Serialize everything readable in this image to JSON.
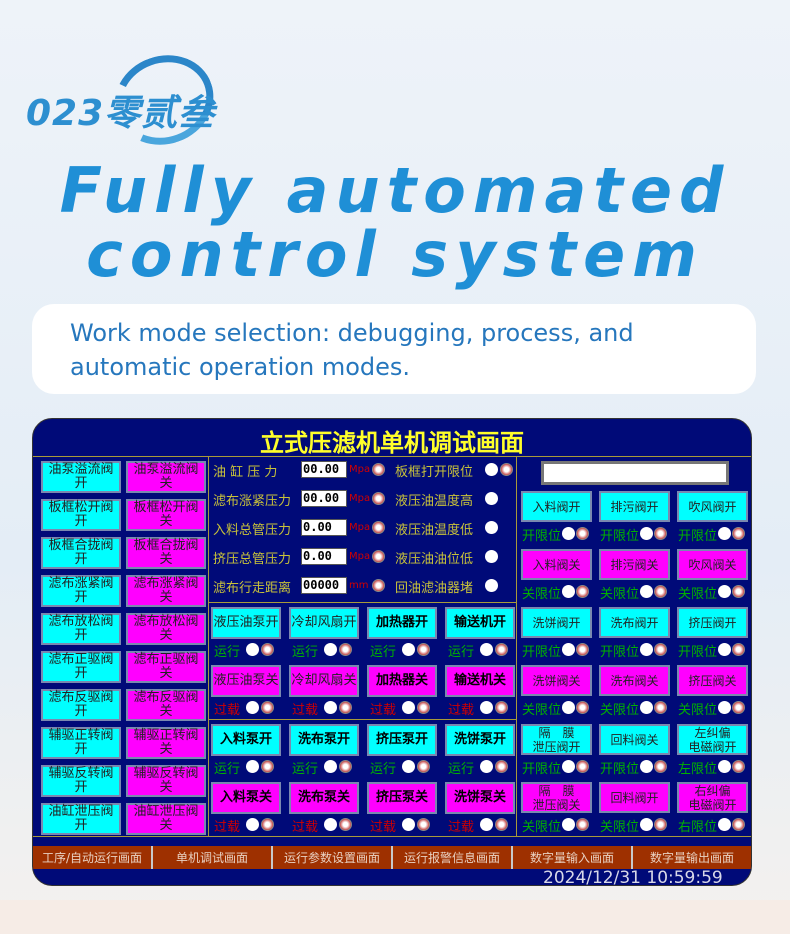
{
  "brand": {
    "logo_text": "023零贰叁"
  },
  "headline": {
    "line1": "Fully automated",
    "line2": "control system"
  },
  "subtitle": "Work mode selection: debugging, process, and automatic operation modes.",
  "panel": {
    "title": "立式压滤机单机调试画面",
    "left_buttons": [
      [
        "油泵溢流阀开",
        "油泵溢流阀关"
      ],
      [
        "板框松开阀开",
        "板框松开阀关"
      ],
      [
        "板框合拢阀开",
        "板框合拢阀关"
      ],
      [
        "滤布涨紧阀开",
        "滤布涨紧阀关"
      ],
      [
        "滤布放松阀开",
        "滤布放松阀关"
      ],
      [
        "滤布正驱阀开",
        "滤布正驱阀关"
      ],
      [
        "滤布反驱阀开",
        "滤布反驱阀关"
      ],
      [
        "辅驱正转阀开",
        "辅驱正转阀关"
      ],
      [
        "辅驱反转阀开",
        "辅驱反转阀关"
      ],
      [
        "油缸泄压阀开",
        "油缸泄压阀关"
      ]
    ],
    "readings": [
      {
        "label": "油 缸  压 力",
        "value": "00.00",
        "unit": "Mpa",
        "status": "板框打开限位",
        "alarm": true
      },
      {
        "label": "滤布涨紧压力",
        "value": "00.00",
        "unit": "Mpa",
        "status": "液压油温度高",
        "alarm": false
      },
      {
        "label": "入料总管压力",
        "value": "0.00",
        "unit": "Mpa",
        "status": "液压油温度低",
        "alarm": false
      },
      {
        "label": "挤压总管压力",
        "value": "0.00",
        "unit": "Mpa",
        "status": "液压油油位低",
        "alarm": false
      },
      {
        "label": "滤布行走距离",
        "value": "00000",
        "unit": "mm",
        "status": "回油滤油器堵",
        "alarm": false
      }
    ],
    "pumps": [
      {
        "on": [
          "液压油泵开",
          "冷却风扇开",
          "加热器开",
          "输送机开"
        ],
        "off": [
          "液压油泵关",
          "冷却风扇关",
          "加热器关",
          "输送机关"
        ],
        "on_status": "运行",
        "off_status": "过载"
      },
      {
        "on": [
          "入料泵开",
          "洗布泵开",
          "挤压泵开",
          "洗饼泵开"
        ],
        "off": [
          "入料泵关",
          "洗布泵关",
          "挤压泵关",
          "洗饼泵关"
        ],
        "on_status": "运行",
        "off_status": "过载"
      }
    ],
    "input_value": "",
    "valves": [
      {
        "buttons": [
          "入料阀开",
          "排污阀开",
          "吹风阀开"
        ],
        "status": [
          "开限位",
          "开限位",
          "开限位"
        ],
        "color": "cy"
      },
      {
        "buttons": [
          "入料阀关",
          "排污阀关",
          "吹风阀关"
        ],
        "status": [
          "关限位",
          "关限位",
          "关限位"
        ],
        "color": "mg"
      },
      {
        "buttons": [
          "洗饼阀开",
          "洗布阀开",
          "挤压阀开"
        ],
        "status": [
          "开限位",
          "开限位",
          "开限位"
        ],
        "color": "cy"
      },
      {
        "buttons": [
          "洗饼阀关",
          "洗布阀关",
          "挤压阀关"
        ],
        "status": [
          "关限位",
          "关限位",
          "关限位"
        ],
        "color": "mg"
      },
      {
        "buttons": [
          "隔　膜\n泄压阀开",
          "回料阀关",
          "左纠偏\n电磁阀开"
        ],
        "status": [
          "开限位",
          "开限位",
          "左限位"
        ],
        "color": "cy"
      },
      {
        "buttons": [
          "隔　膜\n泄压阀关",
          "回料阀开",
          "右纠偏\n电磁阀开"
        ],
        "status": [
          "关限位",
          "关限位",
          "右限位"
        ],
        "color": "mg"
      }
    ],
    "clock": "2024/12/31 10:59:59",
    "tabs": [
      "工序/自动运行画面",
      "单机调试画面",
      "运行参数设置画面",
      "运行报警信息画面",
      "数字量输入画面",
      "数字量输出画面"
    ],
    "colors": {
      "background": "#000a78",
      "title": "#ffff2a",
      "open_button": "#00ffff",
      "close_button": "#ff00ff",
      "tab": "#9e3000"
    }
  }
}
